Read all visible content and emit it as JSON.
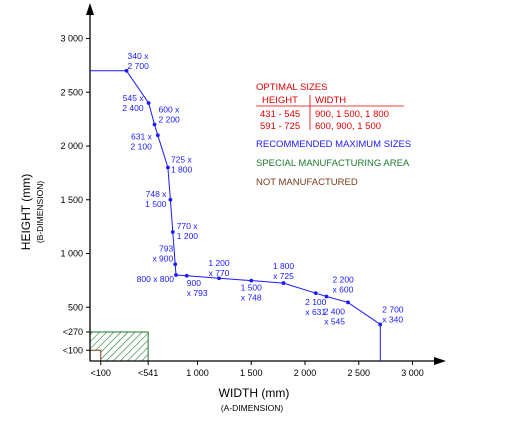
{
  "chart_data": {
    "type": "line",
    "xlabel": "WIDTH (mm)",
    "xlabel_sub": "(A-DIMENSION)",
    "ylabel": "HEIGHT (mm)",
    "ylabel_sub": "(B-DIMENSION)",
    "xlim": [
      0,
      3200
    ],
    "ylim": [
      0,
      3200
    ],
    "x_ticks": [
      {
        "value": 100,
        "label": "<100"
      },
      {
        "value": 541,
        "label": "<541"
      },
      {
        "value": 1000,
        "label": "1 000"
      },
      {
        "value": 1500,
        "label": "1 500"
      },
      {
        "value": 2000,
        "label": "2 000"
      },
      {
        "value": 2500,
        "label": "2 500"
      },
      {
        "value": 3000,
        "label": "3 000"
      }
    ],
    "y_ticks": [
      {
        "value": 100,
        "label": "<100"
      },
      {
        "value": 270,
        "label": "<270"
      },
      {
        "value": 500,
        "label": "500"
      },
      {
        "value": 1000,
        "label": "1 000"
      },
      {
        "value": 1500,
        "label": "1 500"
      },
      {
        "value": 2000,
        "label": "2 000"
      },
      {
        "value": 2500,
        "label": "2 500"
      },
      {
        "value": 3000,
        "label": "3 000"
      }
    ],
    "series": [
      {
        "color": "#1a1aff",
        "start": {
          "x": 0,
          "y": 2700
        },
        "end": {
          "x": 2700,
          "y": 0
        },
        "points": [
          {
            "x": 340,
            "y": 2700,
            "label": [
              "340 x",
              "2 700"
            ],
            "anchor": "start",
            "dx": 1,
            "dy": -12
          },
          {
            "x": 545,
            "y": 2400,
            "label": [
              "545 x",
              "2 400"
            ],
            "anchor": "end",
            "dx": -5,
            "dy": -2
          },
          {
            "x": 600,
            "y": 2200,
            "label": [
              "600 x",
              "2 200"
            ],
            "anchor": "start",
            "dx": 4,
            "dy": -12
          },
          {
            "x": 631,
            "y": 2100,
            "label": [
              "631 x",
              "2 100"
            ],
            "anchor": "end",
            "dx": -6,
            "dy": 4
          },
          {
            "x": 725,
            "y": 1800,
            "label": [
              "725 x",
              "1 800"
            ],
            "anchor": "start",
            "dx": 3,
            "dy": -5
          },
          {
            "x": 748,
            "y": 1500,
            "label": [
              "748 x",
              "1 500"
            ],
            "anchor": "end",
            "dx": -4,
            "dy": -3
          },
          {
            "x": 770,
            "y": 1200,
            "label": [
              "770 x",
              "1 200"
            ],
            "anchor": "start",
            "dx": 4,
            "dy": -3
          },
          {
            "x": 793,
            "y": 900,
            "label": [
              "793",
              "x 900"
            ],
            "anchor": "end",
            "dx": -2,
            "dy": -13
          },
          {
            "x": 800,
            "y": 800,
            "label": [
              "800 x 800"
            ],
            "anchor": "end",
            "dx": -2,
            "dy": 7
          },
          {
            "x": 900,
            "y": 793,
            "label": [
              "900",
              "x 793"
            ],
            "anchor": "start",
            "dx": 0,
            "dy": 10
          },
          {
            "x": 1200,
            "y": 770,
            "label": [
              "1 200",
              "x 770"
            ],
            "anchor": "middle",
            "dx": 0,
            "dy": -12
          },
          {
            "x": 1500,
            "y": 748,
            "label": [
              "1 500",
              "x 748"
            ],
            "anchor": "middle",
            "dx": 0,
            "dy": 10
          },
          {
            "x": 1800,
            "y": 725,
            "label": [
              "1 800",
              "x 725"
            ],
            "anchor": "middle",
            "dx": 0,
            "dy": -14
          },
          {
            "x": 2100,
            "y": 631,
            "label": [
              "2 100",
              "x 631"
            ],
            "anchor": "middle",
            "dx": 0,
            "dy": 12
          },
          {
            "x": 2200,
            "y": 600,
            "label": [
              "2 200",
              "x 600"
            ],
            "anchor": "start",
            "dx": 6,
            "dy": -14
          },
          {
            "x": 2400,
            "y": 545,
            "label": [
              "2 400",
              "x 545"
            ],
            "anchor": "end",
            "dx": -3,
            "dy": 12
          },
          {
            "x": 2700,
            "y": 340,
            "label": [
              "2 700",
              "x 340"
            ],
            "anchor": "start",
            "dx": 2,
            "dy": -12
          }
        ]
      }
    ],
    "special_area": {
      "x": [
        0,
        541
      ],
      "y": [
        0,
        270
      ],
      "color": "#1e7a2e"
    },
    "legend": {
      "optimal_title": "OPTIMAL SIZES",
      "col_height": "HEIGHT",
      "col_width": "WIDTH",
      "rows": [
        {
          "height": "431 - 545",
          "width": "900, 1 500, 1 800"
        },
        {
          "height": "591 - 725",
          "width": "600, 900, 1 500"
        }
      ],
      "recommended": "RECOMMENDED MAXIMUM SIZES",
      "special": "SPECIAL MANUFACTURING AREA",
      "not_manufactured": "NOT MANUFACTURED",
      "colors": {
        "optimal": "#e00000",
        "recommended": "#1a1aff",
        "special": "#1e7a2e",
        "not_manufactured": "#7b3a1a"
      }
    }
  }
}
